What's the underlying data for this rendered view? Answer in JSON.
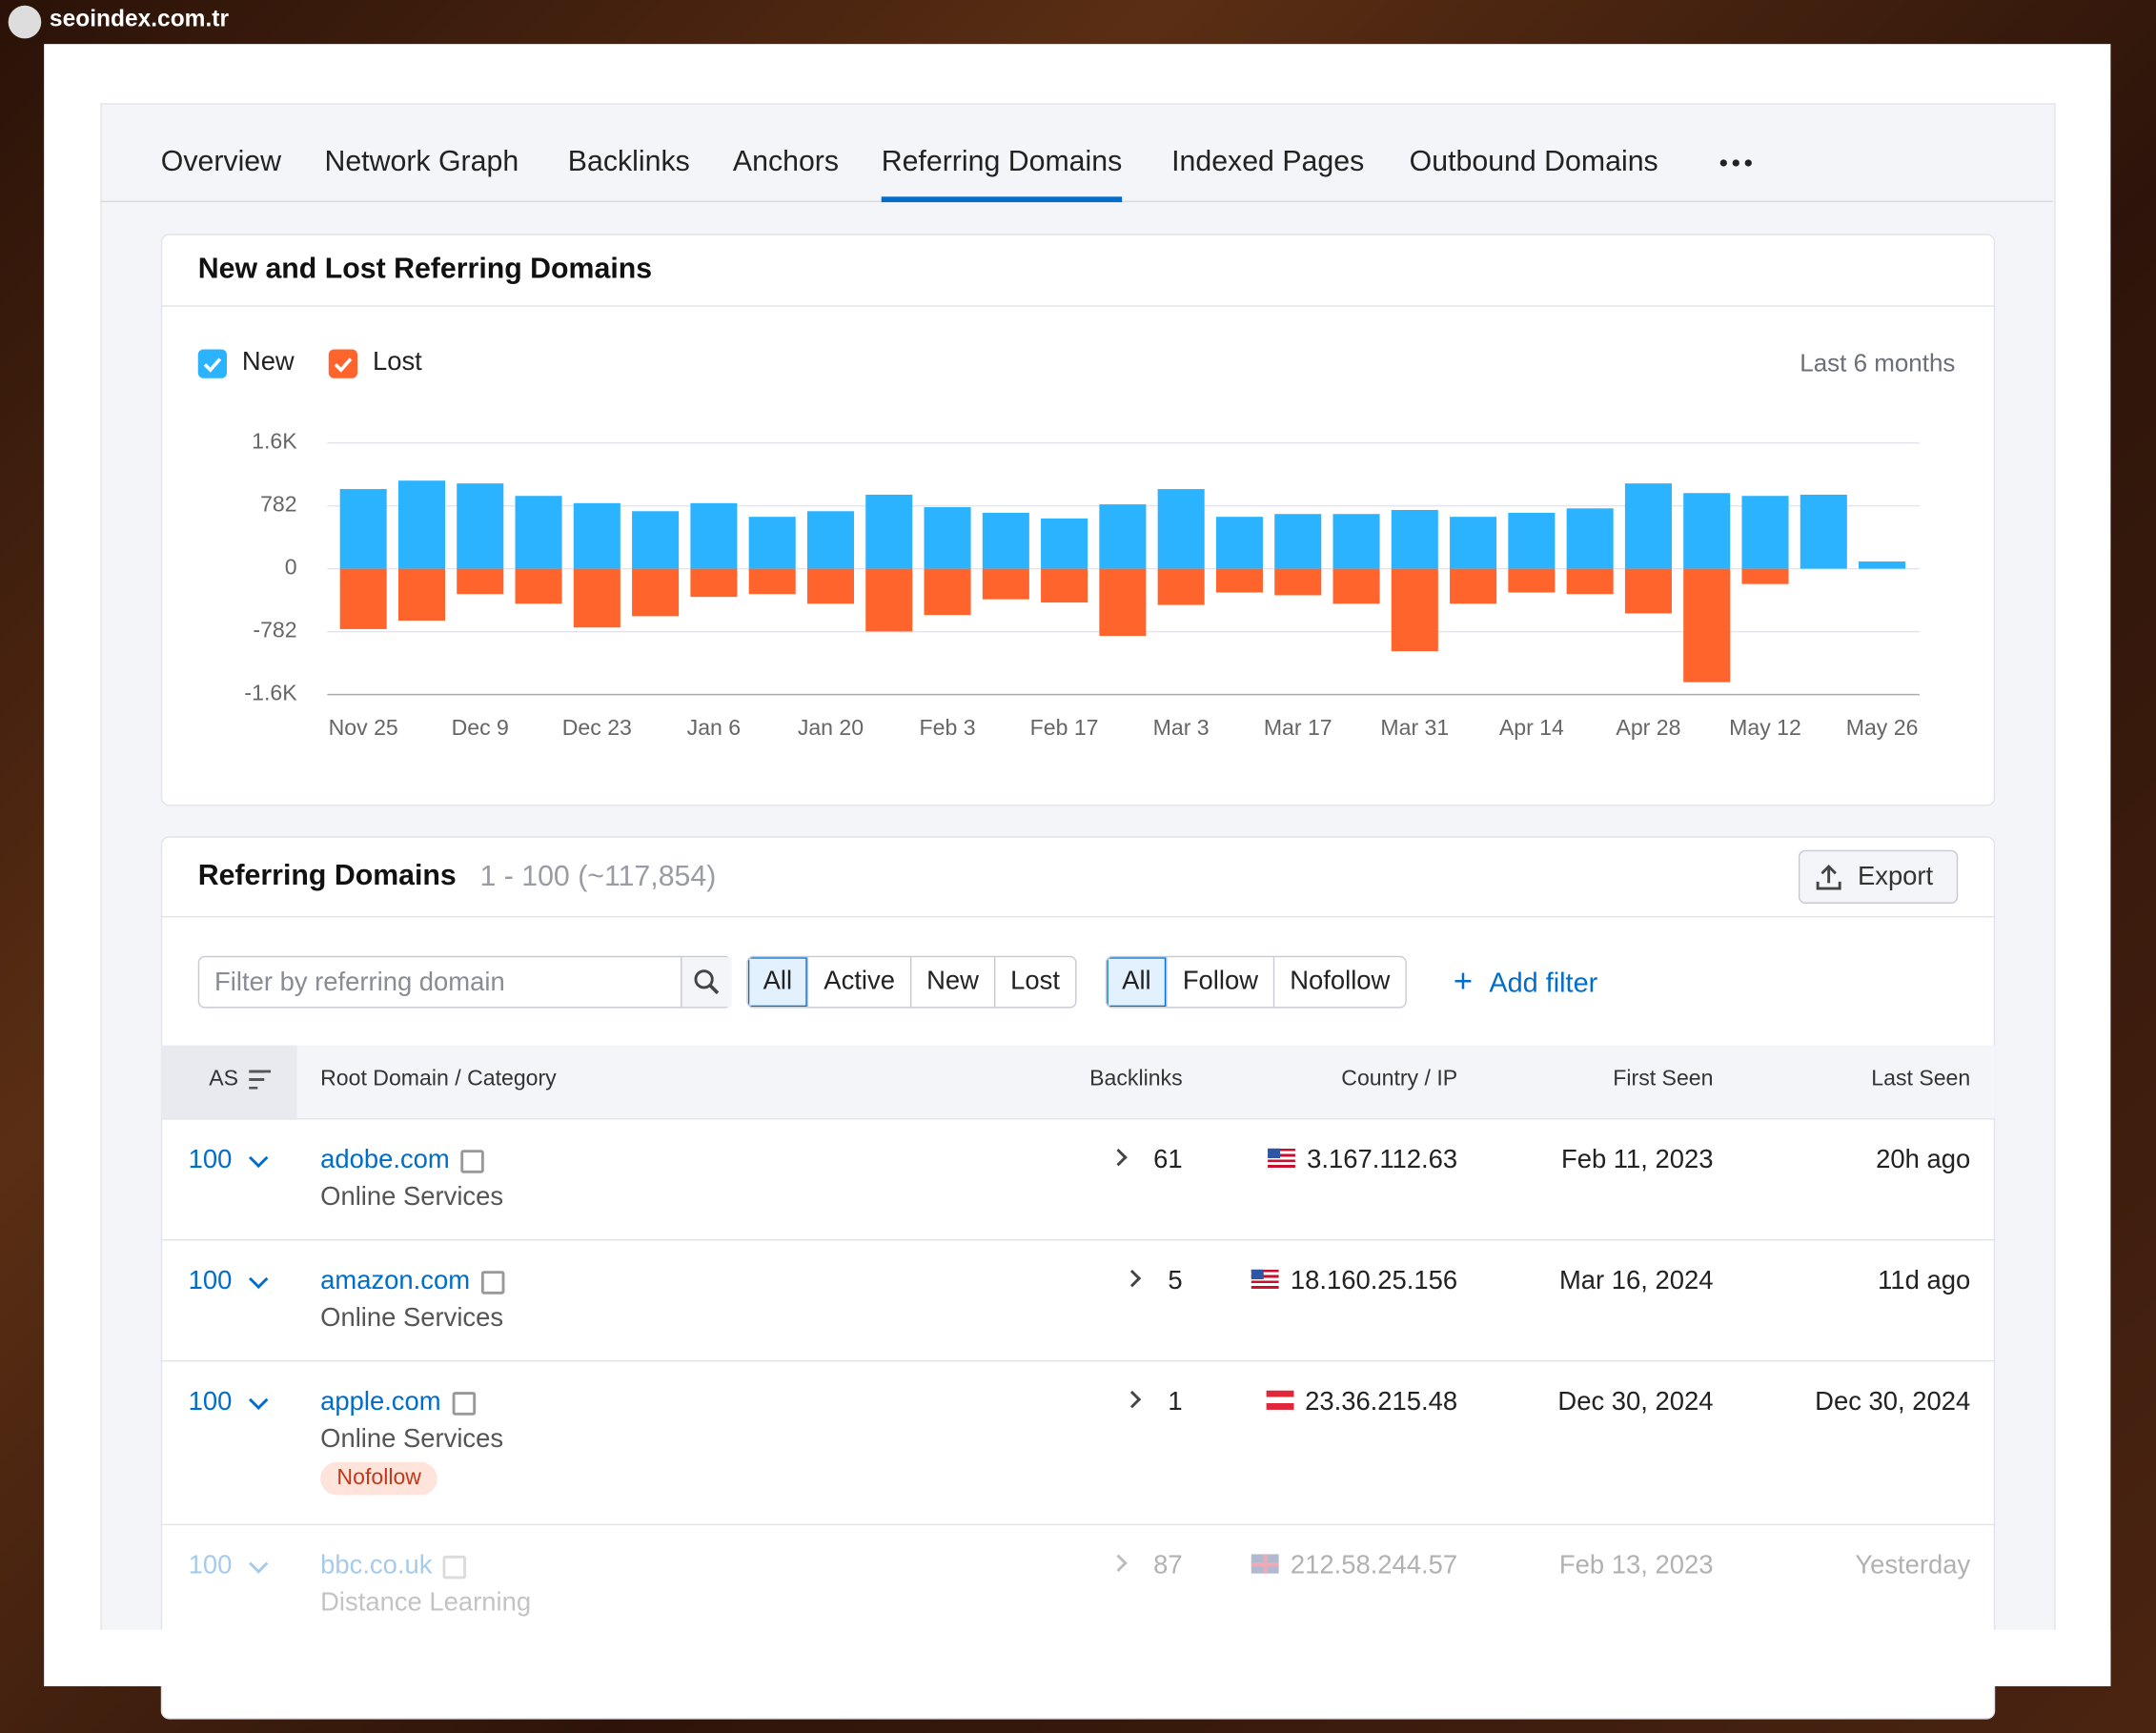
{
  "watermark": "seoindex.com.tr",
  "tabs": [
    "Overview",
    "Network Graph",
    "Backlinks",
    "Anchors",
    "Referring Domains",
    "Indexed Pages",
    "Outbound Domains"
  ],
  "chart_panel": {
    "title": "New and Lost Referring Domains",
    "period": "Last 6 months",
    "chart_data": {
      "type": "bar",
      "legend": "top-left",
      "grid": true,
      "categories": [
        "Nov 25",
        null,
        "Dec 9",
        null,
        "Dec 23",
        null,
        "Jan 6",
        null,
        "Jan 20",
        null,
        "Feb 3",
        null,
        "Feb 17",
        null,
        "Mar 3",
        null,
        "Mar 17",
        null,
        "Mar 31",
        null,
        "Apr 14",
        null,
        "Apr 28",
        null,
        "May 12",
        null,
        "May 26"
      ],
      "series": [
        {
          "name": "New",
          "color": "#2bb3ff",
          "values": [
            990,
            1095,
            1060,
            905,
            815,
            715,
            815,
            645,
            715,
            920,
            765,
            695,
            625,
            800,
            990,
            645,
            680,
            680,
            730,
            645,
            695,
            750,
            1060,
            940,
            905,
            920,
            90
          ]
        },
        {
          "name": "Lost",
          "color": "#ff642d",
          "values": [
            -750,
            -645,
            -315,
            -435,
            -730,
            -590,
            -350,
            -315,
            -435,
            -780,
            -575,
            -380,
            -420,
            -835,
            -450,
            -295,
            -330,
            -435,
            -1025,
            -435,
            -295,
            -315,
            -555,
            -1410,
            -190,
            0,
            0
          ]
        }
      ],
      "ylim": [
        -1564,
        1564
      ],
      "yticks": [
        {
          "value": -1564,
          "label": "-1.6K"
        },
        -782,
        0,
        782,
        {
          "value": 1564,
          "label": "1.6K"
        }
      ]
    }
  },
  "table_panel": {
    "title": "Referring Domains",
    "count": "1 - 100 (~117,854)",
    "export": "Export",
    "search_placeholder": "Filter by referring domain",
    "filter_groups": [
      [
        "All",
        "Active",
        "New",
        "Lost"
      ],
      [
        "All",
        "Follow",
        "Nofollow"
      ]
    ],
    "add_filter": "Add filter",
    "columns": [
      "AS",
      "Root Domain / Category",
      "Backlinks",
      "Country / IP",
      "First Seen",
      "Last Seen"
    ],
    "rows": [
      {
        "as": 100,
        "domain": "adobe.com",
        "category": "Online Services",
        "backlinks": 61,
        "ip": "3.167.112.63",
        "first_seen": "Feb 11, 2023",
        "last_seen": "20h ago"
      },
      {
        "as": 100,
        "domain": "amazon.com",
        "category": "Online Services",
        "backlinks": 5,
        "ip": "18.160.25.156",
        "first_seen": "Mar 16, 2024",
        "last_seen": "11d ago"
      },
      {
        "as": 100,
        "domain": "apple.com",
        "category": "Online Services",
        "tag": "Nofollow",
        "backlinks": 1,
        "ip": "23.36.215.48",
        "first_seen": "Dec 30, 2024",
        "last_seen": "Dec 30, 2024"
      },
      {
        "as": 100,
        "domain": "bbc.co.uk",
        "category": "Distance Learning",
        "backlinks": 87,
        "ip": "212.58.244.57",
        "first_seen": "Feb 13, 2023",
        "last_seen": "Yesterday"
      }
    ]
  }
}
